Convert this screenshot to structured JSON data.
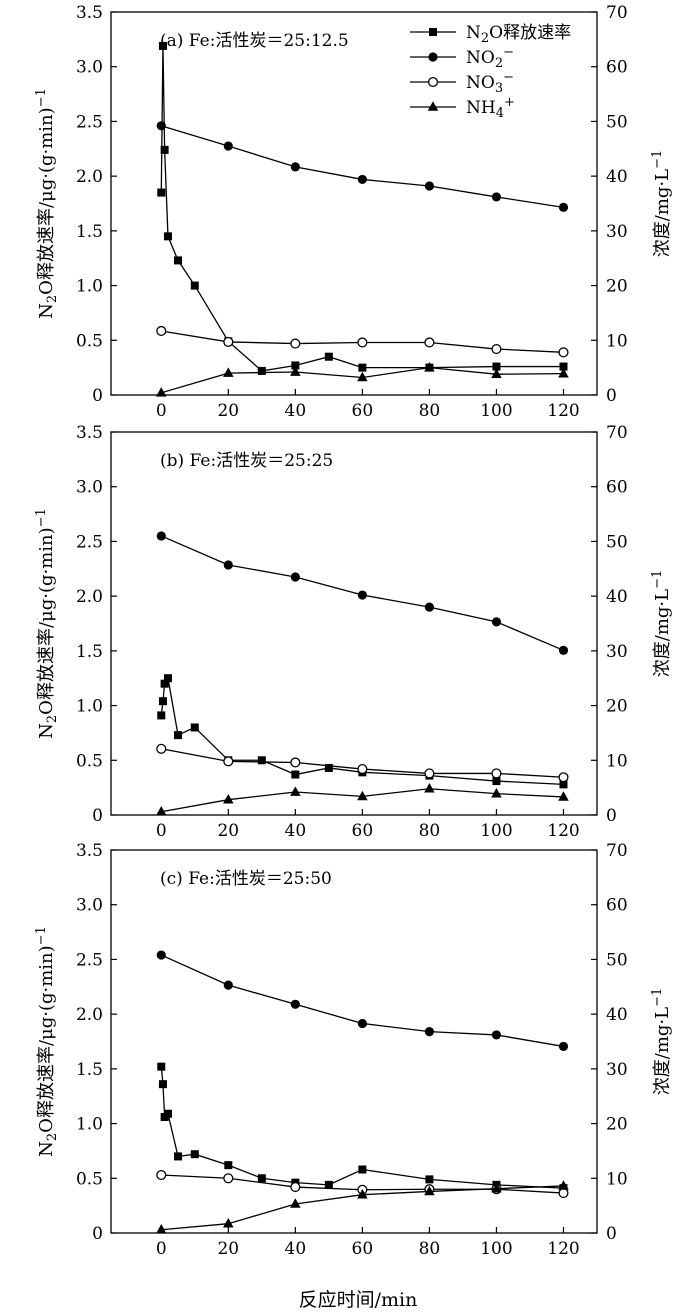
{
  "figure": {
    "xlabel": "反应时间/min",
    "ylabel_left": [
      "N",
      "2",
      "O释放速率/μg·(g·min)",
      "−1"
    ],
    "ylabel_right": [
      "浓度/mg·L",
      "−1"
    ],
    "legend": [
      {
        "key": "n2o",
        "parts": [
          [
            "N",
            ""
          ],
          [
            "2",
            "sub"
          ],
          [
            "O释放速率",
            ""
          ]
        ]
      },
      {
        "key": "no2",
        "parts": [
          [
            "NO",
            ""
          ],
          [
            "2",
            "sub"
          ],
          [
            "−",
            "sup"
          ]
        ]
      },
      {
        "key": "no3",
        "parts": [
          [
            "NO",
            ""
          ],
          [
            "3",
            "sub"
          ],
          [
            "−",
            "sup"
          ]
        ]
      },
      {
        "key": "nh4",
        "parts": [
          [
            "NH",
            ""
          ],
          [
            "4",
            "sub"
          ],
          [
            "+",
            "sup"
          ]
        ]
      }
    ]
  },
  "chart_data": [
    {
      "type": "line",
      "title": "(a)  Fe:活性炭＝25:12.5",
      "xlim": [
        -15,
        130
      ],
      "xticks": [
        0,
        20,
        40,
        60,
        80,
        100,
        120
      ],
      "ylim_left": [
        0,
        3.5
      ],
      "yticks_left": [
        "0",
        "0.5",
        "1.0",
        "1.5",
        "2.0",
        "2.5",
        "3.0",
        "3.5"
      ],
      "ylim_right": [
        0,
        70
      ],
      "yticks_right": [
        "0",
        "10",
        "20",
        "30",
        "40",
        "50",
        "60",
        "70"
      ],
      "series": [
        {
          "name": "N2O释放速率",
          "axis": "left",
          "marker": "square",
          "x": [
            0,
            0.5,
            1,
            2,
            5,
            10,
            20,
            30,
            40,
            50,
            60,
            80,
            100,
            120
          ],
          "y": [
            1.85,
            3.19,
            2.24,
            1.45,
            1.23,
            1.0,
            0.49,
            0.22,
            0.27,
            0.35,
            0.25,
            0.25,
            0.26,
            0.26
          ]
        },
        {
          "name": "NO2−",
          "axis": "right",
          "marker": "filled-circle",
          "x": [
            0,
            20,
            40,
            60,
            80,
            100,
            120
          ],
          "y": [
            49.2,
            45.5,
            41.7,
            39.4,
            38.2,
            36.2,
            34.3
          ]
        },
        {
          "name": "NO3−",
          "axis": "right",
          "marker": "open-circle",
          "x": [
            0,
            20,
            40,
            60,
            80,
            100,
            120
          ],
          "y": [
            11.7,
            9.7,
            9.4,
            9.6,
            9.6,
            8.4,
            7.8
          ]
        },
        {
          "name": "NH4+",
          "axis": "right",
          "marker": "triangle",
          "x": [
            0,
            20,
            40,
            60,
            80,
            100,
            120
          ],
          "y": [
            0.4,
            4.0,
            4.2,
            3.2,
            5.0,
            3.8,
            3.9
          ]
        }
      ]
    },
    {
      "type": "line",
      "title": "(b)  Fe:活性炭＝25:25",
      "xlim": [
        -15,
        130
      ],
      "xticks": [
        0,
        20,
        40,
        60,
        80,
        100,
        120
      ],
      "ylim_left": [
        0,
        3.5
      ],
      "yticks_left": [
        "0",
        "0.5",
        "1.0",
        "1.5",
        "2.0",
        "2.5",
        "3.0",
        "3.5"
      ],
      "ylim_right": [
        0,
        70
      ],
      "yticks_right": [
        "0",
        "10",
        "20",
        "30",
        "40",
        "50",
        "60",
        "70"
      ],
      "series": [
        {
          "name": "N2O释放速率",
          "axis": "left",
          "marker": "square",
          "x": [
            0,
            0.5,
            1,
            2,
            5,
            10,
            20,
            30,
            40,
            50,
            60,
            80,
            100,
            120
          ],
          "y": [
            0.91,
            1.04,
            1.2,
            1.25,
            0.73,
            0.8,
            0.5,
            0.5,
            0.37,
            0.43,
            0.39,
            0.36,
            0.31,
            0.28
          ]
        },
        {
          "name": "NO2−",
          "axis": "right",
          "marker": "filled-circle",
          "x": [
            0,
            20,
            40,
            60,
            80,
            100,
            120
          ],
          "y": [
            51.0,
            45.7,
            43.5,
            40.2,
            38.0,
            35.3,
            30.1
          ]
        },
        {
          "name": "NO3−",
          "axis": "right",
          "marker": "open-circle",
          "x": [
            0,
            20,
            40,
            60,
            80,
            100,
            120
          ],
          "y": [
            12.1,
            9.8,
            9.6,
            8.4,
            7.6,
            7.6,
            6.9
          ]
        },
        {
          "name": "NH4+",
          "axis": "right",
          "marker": "triangle",
          "x": [
            0,
            20,
            40,
            60,
            80,
            100,
            120
          ],
          "y": [
            0.6,
            2.8,
            4.2,
            3.4,
            4.8,
            3.9,
            3.3
          ]
        }
      ]
    },
    {
      "type": "line",
      "title": "(c)  Fe:活性炭＝25:50",
      "xlim": [
        -15,
        130
      ],
      "xticks": [
        0,
        20,
        40,
        60,
        80,
        100,
        120
      ],
      "ylim_left": [
        0,
        3.5
      ],
      "yticks_left": [
        "0",
        "0.5",
        "1.0",
        "1.5",
        "2.0",
        "2.5",
        "3.0",
        "3.5"
      ],
      "ylim_right": [
        0,
        70
      ],
      "yticks_right": [
        "0",
        "10",
        "20",
        "30",
        "40",
        "50",
        "60",
        "70"
      ],
      "series": [
        {
          "name": "N2O释放速率",
          "axis": "left",
          "marker": "square",
          "x": [
            0,
            0.5,
            1,
            2,
            5,
            10,
            20,
            30,
            40,
            50,
            60,
            80,
            100,
            120
          ],
          "y": [
            1.52,
            1.36,
            1.06,
            1.09,
            0.7,
            0.72,
            0.62,
            0.5,
            0.46,
            0.44,
            0.58,
            0.49,
            0.44,
            0.41
          ]
        },
        {
          "name": "NO2−",
          "axis": "right",
          "marker": "filled-circle",
          "x": [
            0,
            20,
            40,
            60,
            80,
            100,
            120
          ],
          "y": [
            50.8,
            45.3,
            41.8,
            38.3,
            36.8,
            36.2,
            34.1
          ]
        },
        {
          "name": "NO3−",
          "axis": "right",
          "marker": "open-circle",
          "x": [
            0,
            20,
            40,
            60,
            80,
            100,
            120
          ],
          "y": [
            10.6,
            10.0,
            8.4,
            7.9,
            8.0,
            8.0,
            7.3
          ]
        },
        {
          "name": "NH4+",
          "axis": "right",
          "marker": "triangle",
          "x": [
            0,
            20,
            40,
            60,
            80,
            100,
            120
          ],
          "y": [
            0.6,
            1.7,
            5.3,
            7.0,
            7.6,
            8.1,
            8.6
          ]
        }
      ]
    }
  ]
}
